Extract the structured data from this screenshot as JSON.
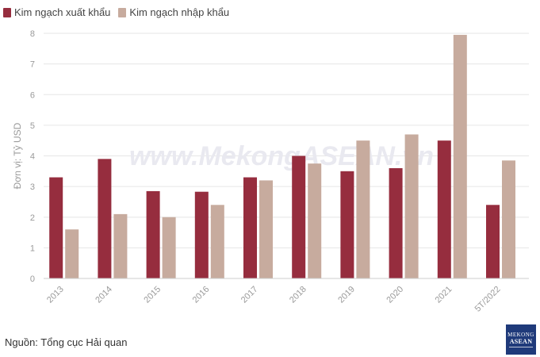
{
  "legend": {
    "export_label": "Kim ngạch xuất khẩu",
    "import_label": "Kim ngạch nhập khẩu"
  },
  "colors": {
    "export": "#962d3e",
    "import": "#c7ab9e",
    "grid": "#e6e6e6",
    "axis_text": "#9a9a9a",
    "watermark": "#e9e9f0"
  },
  "watermark_text": "www.MekongASEAN.vn",
  "source_text": "Nguồn: Tổng cục Hải quan",
  "logo": {
    "line1": "MEKONG",
    "line2": "ASEAN"
  },
  "chart_data": {
    "type": "bar",
    "ylabel": "Đơn vị: Tỷ USD",
    "xlabel": "",
    "ylim": [
      0,
      8
    ],
    "yticks": [
      0,
      1,
      2,
      3,
      4,
      5,
      6,
      7,
      8
    ],
    "grid": true,
    "legend_position": "top-left",
    "categories": [
      "2013",
      "2014",
      "2015",
      "2016",
      "2017",
      "2018",
      "2019",
      "2020",
      "2021",
      "5T/2022"
    ],
    "series": [
      {
        "name": "Kim ngạch xuất khẩu",
        "values": [
          3.3,
          3.9,
          2.85,
          2.83,
          3.3,
          4.0,
          3.5,
          3.6,
          4.5,
          2.4
        ]
      },
      {
        "name": "Kim ngạch nhập khẩu",
        "values": [
          1.6,
          2.1,
          2.0,
          2.4,
          3.2,
          3.75,
          4.5,
          4.7,
          7.95,
          3.85
        ]
      }
    ]
  }
}
